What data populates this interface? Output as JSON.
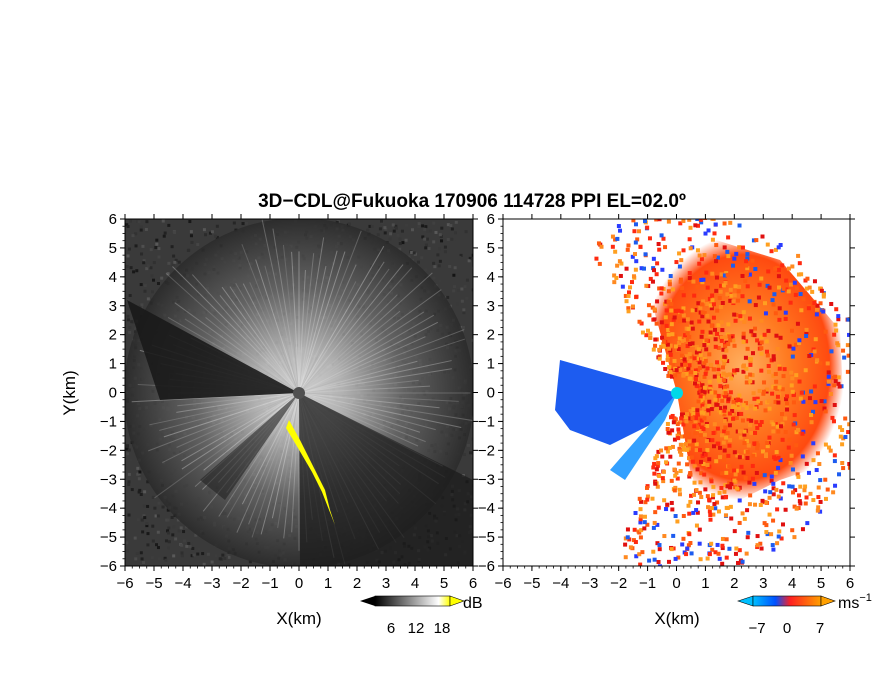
{
  "title": "3D−CDL@Fukuoka 170906 114728 PPI EL=02.0º",
  "axes": {
    "xlabel": "X(km)",
    "ylabel": "Y(km)",
    "ticks": [
      "−6",
      "−5",
      "−4",
      "−3",
      "−2",
      "−1",
      "0",
      "1",
      "2",
      "3",
      "4",
      "5",
      "6"
    ],
    "xlim": [
      -6,
      6
    ],
    "ylim": [
      -6,
      6
    ]
  },
  "colorbars": {
    "intensity": {
      "unit": "dB",
      "labels": [
        "6",
        "12",
        "18"
      ],
      "colors": [
        "#000000",
        "#ffffff",
        "#ffff00"
      ]
    },
    "velocity": {
      "unit": "ms",
      "unit_sup": "−1",
      "labels": [
        "−7",
        "0",
        "7"
      ],
      "colors": [
        "#00bfff",
        "#0050ff",
        "#ff2020",
        "#ffa000"
      ]
    }
  },
  "chart_data": [
    {
      "type": "heatmap",
      "title": "",
      "xlabel": "X(km)",
      "ylabel": "Y(km)",
      "xlim": [
        -6,
        6
      ],
      "ylim": [
        -6,
        6
      ],
      "colorbar": {
        "unit": "dB",
        "ticks": [
          6,
          12,
          18
        ]
      },
      "grid": false
    },
    {
      "type": "heatmap",
      "title": "",
      "xlabel": "X(km)",
      "ylabel": "",
      "xlim": [
        -6,
        6
      ],
      "ylim": [
        -6,
        6
      ],
      "colorbar": {
        "unit": "ms⁻¹",
        "ticks": [
          -7,
          0,
          7
        ]
      },
      "grid": false
    }
  ]
}
